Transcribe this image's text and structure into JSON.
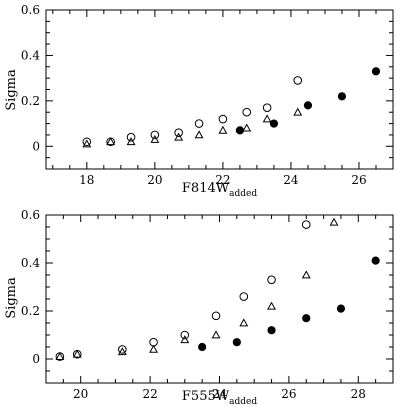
{
  "chart_data": [
    {
      "type": "scatter",
      "xlabel": "F814W",
      "xlabel_sub": "added",
      "ylabel": "Sigma",
      "xlim": [
        16.8,
        27.0
      ],
      "ylim": [
        -0.1,
        0.6
      ],
      "xticks": [
        18,
        20,
        22,
        24,
        26
      ],
      "yticks": [
        0,
        0.2,
        0.4,
        0.6
      ],
      "xtick_labels": [
        "18",
        "20",
        "22",
        "24",
        "26"
      ],
      "ytick_labels": [
        "0",
        "0.2",
        "0.4",
        "0.6"
      ],
      "grid": false,
      "series": [
        {
          "marker": "open-circle",
          "x": [
            18.0,
            18.7,
            19.3,
            20.0,
            20.7,
            21.3,
            22.0,
            22.7,
            23.3,
            24.2
          ],
          "y": [
            0.02,
            0.02,
            0.04,
            0.05,
            0.06,
            0.1,
            0.12,
            0.15,
            0.17,
            0.29
          ]
        },
        {
          "marker": "open-triangle",
          "x": [
            18.0,
            18.7,
            19.3,
            20.0,
            20.7,
            21.3,
            22.0,
            22.7,
            23.3,
            24.2
          ],
          "y": [
            0.01,
            0.02,
            0.02,
            0.03,
            0.04,
            0.05,
            0.07,
            0.08,
            0.12,
            0.15
          ]
        },
        {
          "marker": "filled-circle",
          "x": [
            22.5,
            23.5,
            24.5,
            25.5,
            26.5
          ],
          "y": [
            0.07,
            0.1,
            0.18,
            0.22,
            0.33
          ]
        }
      ]
    },
    {
      "type": "scatter",
      "xlabel": "F555W",
      "xlabel_sub": "added",
      "ylabel": "Sigma",
      "xlim": [
        19.0,
        29.0
      ],
      "ylim": [
        -0.1,
        0.6
      ],
      "xticks": [
        20,
        22,
        24,
        26,
        28
      ],
      "yticks": [
        0,
        0.2,
        0.4,
        0.6
      ],
      "xtick_labels": [
        "20",
        "22",
        "24",
        "26",
        "28"
      ],
      "ytick_labels": [
        "0",
        "0.2",
        "0.4",
        "0.6"
      ],
      "grid": false,
      "series": [
        {
          "marker": "open-circle",
          "x": [
            19.4,
            19.9,
            21.2,
            22.1,
            23.0,
            23.9,
            24.7,
            25.5,
            26.5
          ],
          "y": [
            0.01,
            0.02,
            0.04,
            0.07,
            0.1,
            0.18,
            0.26,
            0.33,
            0.56
          ]
        },
        {
          "marker": "open-triangle",
          "x": [
            19.4,
            19.9,
            21.2,
            22.1,
            23.0,
            23.9,
            24.7,
            25.5,
            26.5,
            27.3
          ],
          "y": [
            0.01,
            0.02,
            0.03,
            0.04,
            0.08,
            0.1,
            0.15,
            0.22,
            0.35,
            0.57
          ]
        },
        {
          "marker": "filled-circle",
          "x": [
            23.5,
            24.5,
            25.5,
            26.5,
            27.5,
            28.5
          ],
          "y": [
            0.05,
            0.07,
            0.12,
            0.17,
            0.21,
            0.41
          ]
        }
      ]
    }
  ]
}
